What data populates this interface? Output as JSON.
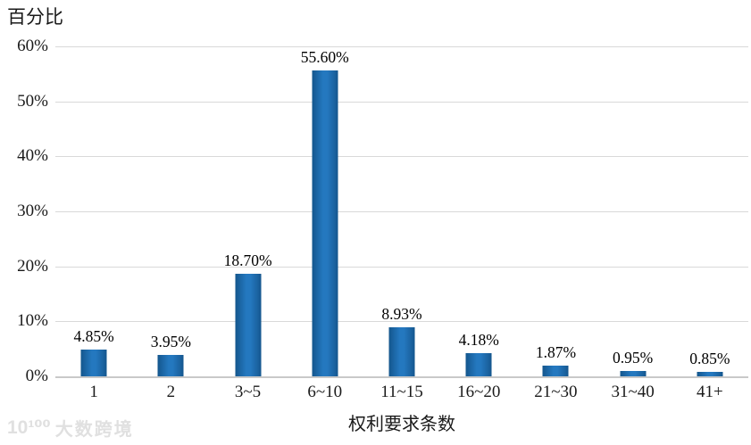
{
  "chart_data": {
    "type": "bar",
    "title": "",
    "ylabel": "百分比",
    "xlabel": "权利要求条数",
    "categories": [
      "1",
      "2",
      "3~5",
      "6~10",
      "11~15",
      "16~20",
      "21~30",
      "31~40",
      "41+"
    ],
    "values": [
      4.85,
      3.95,
      18.7,
      55.6,
      8.93,
      4.18,
      1.87,
      0.95,
      0.85
    ],
    "value_labels": [
      "4.85%",
      "3.95%",
      "18.70%",
      "55.60%",
      "8.93%",
      "4.18%",
      "1.87%",
      "0.95%",
      "0.85%"
    ],
    "y_ticks": [
      {
        "value": 0,
        "label": "0%"
      },
      {
        "value": 10,
        "label": "10%"
      },
      {
        "value": 20,
        "label": "20%"
      },
      {
        "value": 30,
        "label": "30%"
      },
      {
        "value": 40,
        "label": "40%"
      },
      {
        "value": 50,
        "label": "50%"
      },
      {
        "value": 60,
        "label": "60%"
      }
    ],
    "ylim": [
      0,
      60
    ],
    "grid": true,
    "legend": "none",
    "bar_color_center": "#2478bf",
    "bar_color_edge": "#14568d"
  },
  "colors": {
    "gridline": "#d9d9d9",
    "axis_line": "#c9c9c9",
    "text": "#1a1a1a",
    "watermark": "#e0e0e0",
    "background": "#ffffff"
  },
  "watermark": {
    "logo": "10¹⁰⁰",
    "text": "大数跨境"
  }
}
